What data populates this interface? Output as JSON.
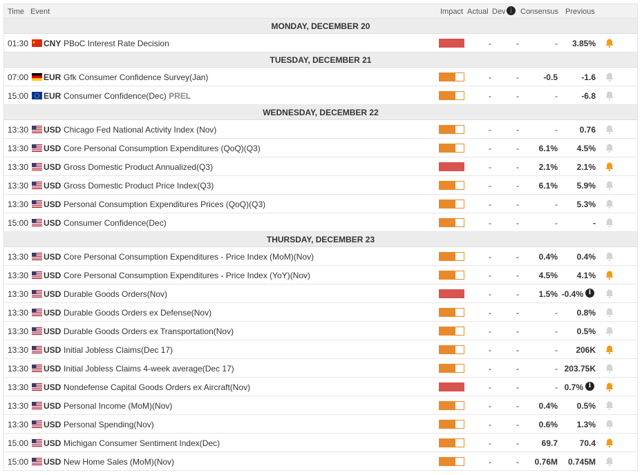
{
  "header": {
    "time": "Time",
    "event": "Event",
    "impact": "Impact",
    "actual": "Actual",
    "dev": "Dev",
    "consensus": "Consensus",
    "previous": "Previous"
  },
  "colors": {
    "high": "#d9534f",
    "medium": "#e8892c",
    "bell_active": "#f39c12",
    "bell_inactive": "#d3d3d3"
  },
  "days": [
    {
      "label": "MONDAY, DECEMBER 20",
      "events": [
        {
          "time": "01:30",
          "flag": "CN",
          "currency": "CNY",
          "event": "PBoC Interest Rate Decision",
          "prel": "",
          "impact": "high",
          "actual": "-",
          "dev": "-",
          "consensus": "-",
          "previous": "3.85%",
          "info": false,
          "bell": true
        }
      ]
    },
    {
      "label": "TUESDAY, DECEMBER 21",
      "events": [
        {
          "time": "07:00",
          "flag": "DE",
          "currency": "EUR",
          "event": "Gfk Consumer Confidence Survey(Jan)",
          "prel": "",
          "impact": "medium",
          "actual": "-",
          "dev": "-",
          "consensus": "-0.5",
          "previous": "-1.6",
          "info": false,
          "bell": false
        },
        {
          "time": "15:00",
          "flag": "EU",
          "currency": "EUR",
          "event": "Consumer Confidence(Dec)",
          "prel": "PREL",
          "impact": "medium",
          "actual": "-",
          "dev": "-",
          "consensus": "-",
          "previous": "-6.8",
          "info": false,
          "bell": false
        }
      ]
    },
    {
      "label": "WEDNESDAY, DECEMBER 22",
      "events": [
        {
          "time": "13:30",
          "flag": "US",
          "currency": "USD",
          "event": "Chicago Fed National Activity Index (Nov)",
          "prel": "",
          "impact": "medium",
          "actual": "-",
          "dev": "-",
          "consensus": "-",
          "previous": "0.76",
          "info": false,
          "bell": false
        },
        {
          "time": "13:30",
          "flag": "US",
          "currency": "USD",
          "event": "Core Personal Consumption Expenditures (QoQ)(Q3)",
          "prel": "",
          "impact": "medium",
          "actual": "-",
          "dev": "-",
          "consensus": "6.1%",
          "previous": "4.5%",
          "info": false,
          "bell": false
        },
        {
          "time": "13:30",
          "flag": "US",
          "currency": "USD",
          "event": "Gross Domestic Product Annualized(Q3)",
          "prel": "",
          "impact": "high",
          "actual": "-",
          "dev": "-",
          "consensus": "2.1%",
          "previous": "2.1%",
          "info": false,
          "bell": true
        },
        {
          "time": "13:30",
          "flag": "US",
          "currency": "USD",
          "event": "Gross Domestic Product Price Index(Q3)",
          "prel": "",
          "impact": "medium",
          "actual": "-",
          "dev": "-",
          "consensus": "6.1%",
          "previous": "5.9%",
          "info": false,
          "bell": false
        },
        {
          "time": "13:30",
          "flag": "US",
          "currency": "USD",
          "event": "Personal Consumption Expenditures Prices (QoQ)(Q3)",
          "prel": "",
          "impact": "medium",
          "actual": "-",
          "dev": "-",
          "consensus": "-",
          "previous": "5.3%",
          "info": false,
          "bell": false
        },
        {
          "time": "15:00",
          "flag": "US",
          "currency": "USD",
          "event": "Consumer Confidence(Dec)",
          "prel": "",
          "impact": "medium",
          "actual": "-",
          "dev": "-",
          "consensus": "-",
          "previous": "-",
          "info": false,
          "bell": false
        }
      ]
    },
    {
      "label": "THURSDAY, DECEMBER 23",
      "events": [
        {
          "time": "13:30",
          "flag": "US",
          "currency": "USD",
          "event": "Core Personal Consumption Expenditures - Price Index (MoM)(Nov)",
          "prel": "",
          "impact": "medium",
          "actual": "-",
          "dev": "-",
          "consensus": "0.4%",
          "previous": "0.4%",
          "info": false,
          "bell": false
        },
        {
          "time": "13:30",
          "flag": "US",
          "currency": "USD",
          "event": "Core Personal Consumption Expenditures - Price Index (YoY)(Nov)",
          "prel": "",
          "impact": "medium",
          "actual": "-",
          "dev": "-",
          "consensus": "4.5%",
          "previous": "4.1%",
          "info": false,
          "bell": true
        },
        {
          "time": "13:30",
          "flag": "US",
          "currency": "USD",
          "event": "Durable Goods Orders(Nov)",
          "prel": "",
          "impact": "high",
          "actual": "-",
          "dev": "-",
          "consensus": "1.5%",
          "previous": "-0.4%",
          "info": true,
          "bell": false
        },
        {
          "time": "13:30",
          "flag": "US",
          "currency": "USD",
          "event": "Durable Goods Orders ex Defense(Nov)",
          "prel": "",
          "impact": "medium",
          "actual": "-",
          "dev": "-",
          "consensus": "-",
          "previous": "0.8%",
          "info": false,
          "bell": false
        },
        {
          "time": "13:30",
          "flag": "US",
          "currency": "USD",
          "event": "Durable Goods Orders ex Transportation(Nov)",
          "prel": "",
          "impact": "medium",
          "actual": "-",
          "dev": "-",
          "consensus": "-",
          "previous": "0.5%",
          "info": false,
          "bell": false
        },
        {
          "time": "13:30",
          "flag": "US",
          "currency": "USD",
          "event": "Initial Jobless Claims(Dec 17)",
          "prel": "",
          "impact": "medium",
          "actual": "-",
          "dev": "-",
          "consensus": "-",
          "previous": "206K",
          "info": false,
          "bell": true
        },
        {
          "time": "13:30",
          "flag": "US",
          "currency": "USD",
          "event": "Initial Jobless Claims 4-week average(Dec 17)",
          "prel": "",
          "impact": "medium",
          "actual": "-",
          "dev": "-",
          "consensus": "-",
          "previous": "203.75K",
          "info": false,
          "bell": false
        },
        {
          "time": "13:30",
          "flag": "US",
          "currency": "USD",
          "event": "Nondefense Capital Goods Orders ex Aircraft(Nov)",
          "prel": "",
          "impact": "high",
          "actual": "-",
          "dev": "-",
          "consensus": "-",
          "previous": "0.7%",
          "info": true,
          "bell": true
        },
        {
          "time": "13:30",
          "flag": "US",
          "currency": "USD",
          "event": "Personal Income (MoM)(Nov)",
          "prel": "",
          "impact": "medium",
          "actual": "-",
          "dev": "-",
          "consensus": "0.4%",
          "previous": "0.5%",
          "info": false,
          "bell": false
        },
        {
          "time": "13:30",
          "flag": "US",
          "currency": "USD",
          "event": "Personal Spending(Nov)",
          "prel": "",
          "impact": "medium",
          "actual": "-",
          "dev": "-",
          "consensus": "0.6%",
          "previous": "1.3%",
          "info": false,
          "bell": false
        },
        {
          "time": "15:00",
          "flag": "US",
          "currency": "USD",
          "event": "Michigan Consumer Sentiment Index(Dec)",
          "prel": "",
          "impact": "medium",
          "actual": "-",
          "dev": "-",
          "consensus": "69.7",
          "previous": "70.4",
          "info": false,
          "bell": true
        },
        {
          "time": "15:00",
          "flag": "US",
          "currency": "USD",
          "event": "New Home Sales (MoM)(Nov)",
          "prel": "",
          "impact": "medium",
          "actual": "-",
          "dev": "-",
          "consensus": "0.76M",
          "previous": "0.745M",
          "info": false,
          "bell": false
        }
      ]
    }
  ]
}
